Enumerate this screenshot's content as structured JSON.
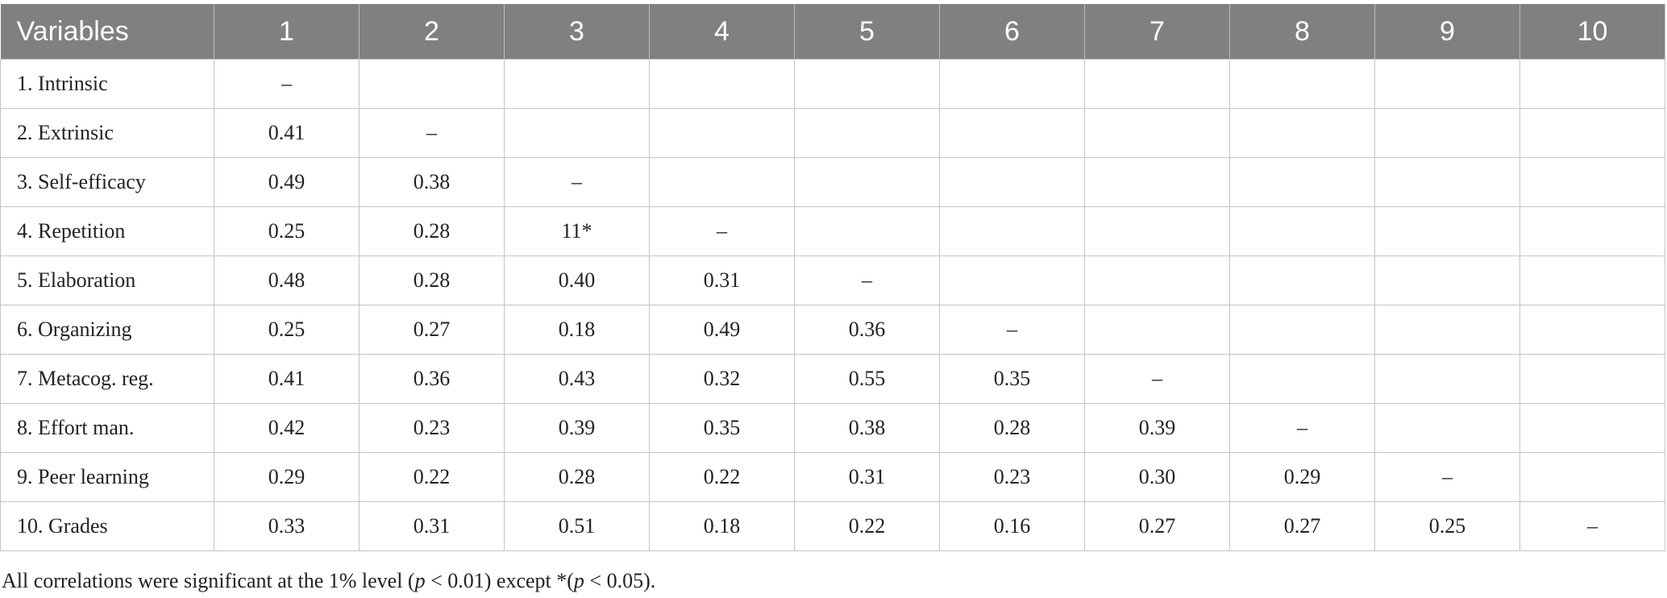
{
  "table": {
    "header": [
      "Variables",
      "1",
      "2",
      "3",
      "4",
      "5",
      "6",
      "7",
      "8",
      "9",
      "10"
    ],
    "rows": [
      [
        "1. Intrinsic",
        "–",
        null,
        null,
        null,
        null,
        null,
        null,
        null,
        null,
        null
      ],
      [
        "2. Extrinsic",
        "0.41",
        "–",
        null,
        null,
        null,
        null,
        null,
        null,
        null,
        null
      ],
      [
        "3. Self-efficacy",
        "0.49",
        "0.38",
        "–",
        null,
        null,
        null,
        null,
        null,
        null,
        null
      ],
      [
        "4. Repetition",
        "0.25",
        "0.28",
        "11*",
        "–",
        null,
        null,
        null,
        null,
        null,
        null
      ],
      [
        "5. Elaboration",
        "0.48",
        "0.28",
        "0.40",
        "0.31",
        "–",
        null,
        null,
        null,
        null,
        null
      ],
      [
        "6. Organizing",
        "0.25",
        "0.27",
        "0.18",
        "0.49",
        "0.36",
        "–",
        null,
        null,
        null,
        null
      ],
      [
        "7. Metacog. reg.",
        "0.41",
        "0.36",
        "0.43",
        "0.32",
        "0.55",
        "0.35",
        "–",
        null,
        null,
        null
      ],
      [
        "8. Effort man.",
        "0.42",
        "0.23",
        "0.39",
        "0.35",
        "0.38",
        "0.28",
        "0.39",
        "–",
        null,
        null
      ],
      [
        "9. Peer learning",
        "0.29",
        "0.22",
        "0.28",
        "0.22",
        "0.31",
        "0.23",
        "0.30",
        "0.29",
        "–",
        null
      ],
      [
        "10. Grades",
        "0.33",
        "0.31",
        "0.51",
        "0.18",
        "0.22",
        "0.16",
        "0.27",
        "0.27",
        "0.25",
        "–"
      ]
    ]
  },
  "footnote": [
    "All correlations were significant at the 1% level (",
    "p",
    " < 0.01) except *(",
    "p",
    " < 0.05)."
  ]
}
